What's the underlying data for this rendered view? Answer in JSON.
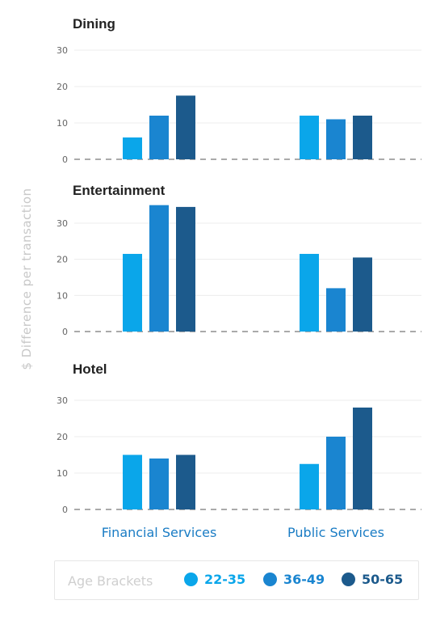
{
  "chart_data": {
    "type": "bar",
    "ylabel": "$ Difference per transaction",
    "categories": [
      "Financial Services",
      "Public Services"
    ],
    "series_names": [
      "22-35",
      "36-49",
      "50-65"
    ],
    "colors": [
      "#0aa6ea",
      "#1a85d0",
      "#1c5a8c"
    ],
    "ylim": [
      0,
      30
    ],
    "yticks": [
      0,
      10,
      20,
      30
    ],
    "grid": true,
    "panels": [
      {
        "title": "Dining",
        "series": [
          {
            "name": "22-35",
            "values": [
              6,
              12
            ]
          },
          {
            "name": "36-49",
            "values": [
              12,
              11
            ]
          },
          {
            "name": "50-65",
            "values": [
              17.5,
              12
            ]
          }
        ]
      },
      {
        "title": "Entertainment",
        "series": [
          {
            "name": "22-35",
            "values": [
              21.5,
              21.5
            ]
          },
          {
            "name": "36-49",
            "values": [
              35,
              12
            ]
          },
          {
            "name": "50-65",
            "values": [
              34.5,
              20.5
            ]
          }
        ]
      },
      {
        "title": "Hotel",
        "series": [
          {
            "name": "22-35",
            "values": [
              15,
              12.5
            ]
          },
          {
            "name": "36-49",
            "values": [
              14,
              20
            ]
          },
          {
            "name": "50-65",
            "values": [
              15,
              28
            ]
          }
        ]
      }
    ]
  },
  "legend": {
    "title": "Age Brackets",
    "items": [
      {
        "label": "22-35",
        "color": "#0aa6ea"
      },
      {
        "label": "36-49",
        "color": "#1a85d0"
      },
      {
        "label": "50-65",
        "color": "#1c5a8c"
      }
    ]
  }
}
